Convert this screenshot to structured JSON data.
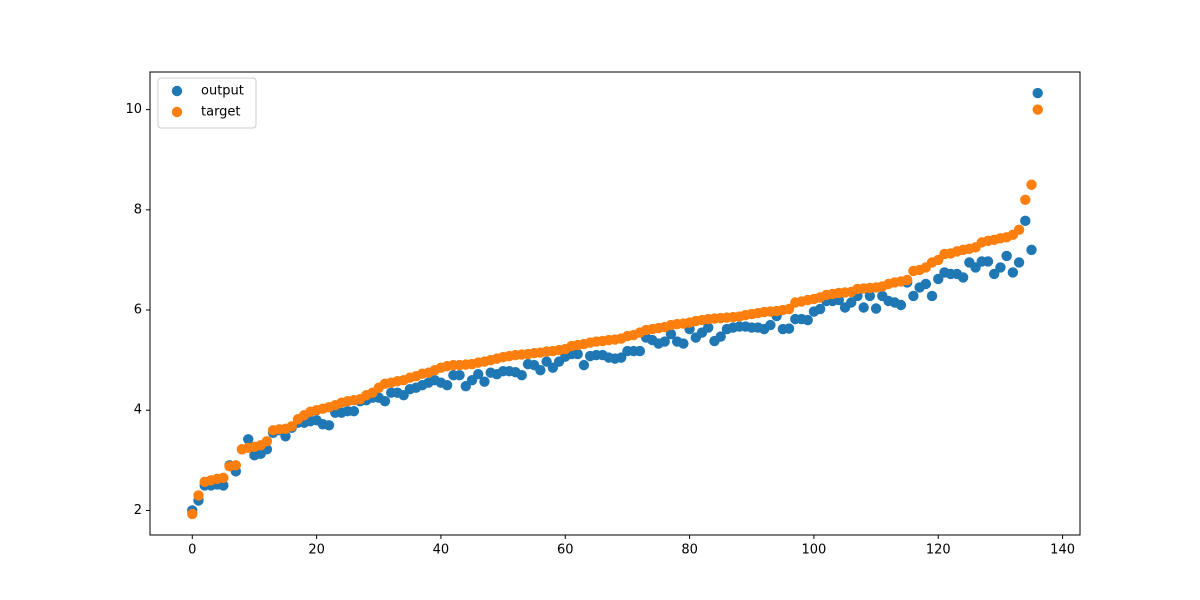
{
  "chart_data": {
    "type": "scatter",
    "x": [
      0,
      1,
      2,
      3,
      4,
      5,
      6,
      7,
      8,
      9,
      10,
      11,
      12,
      13,
      14,
      15,
      16,
      17,
      18,
      19,
      20,
      21,
      22,
      23,
      24,
      25,
      26,
      27,
      28,
      29,
      30,
      31,
      32,
      33,
      34,
      35,
      36,
      37,
      38,
      39,
      40,
      41,
      42,
      43,
      44,
      45,
      46,
      47,
      48,
      49,
      50,
      51,
      52,
      53,
      54,
      55,
      56,
      57,
      58,
      59,
      60,
      61,
      62,
      63,
      64,
      65,
      66,
      67,
      68,
      69,
      70,
      71,
      72,
      73,
      74,
      75,
      76,
      77,
      78,
      79,
      80,
      81,
      82,
      83,
      84,
      85,
      86,
      87,
      88,
      89,
      90,
      91,
      92,
      93,
      94,
      95,
      96,
      97,
      98,
      99,
      100,
      101,
      102,
      103,
      104,
      105,
      106,
      107,
      108,
      109,
      110,
      111,
      112,
      113,
      114,
      115,
      116,
      117,
      118,
      119,
      120,
      121,
      122,
      123,
      124,
      125,
      126,
      127,
      128,
      129,
      130,
      131,
      132,
      133,
      134,
      135,
      136
    ],
    "series": [
      {
        "name": "output",
        "color": "#1f77b4",
        "values": [
          2.0,
          2.2,
          2.5,
          2.5,
          2.52,
          2.5,
          2.9,
          2.78,
          3.22,
          3.42,
          3.1,
          3.13,
          3.22,
          3.55,
          3.6,
          3.48,
          3.65,
          3.75,
          3.75,
          3.78,
          3.8,
          3.72,
          3.7,
          3.95,
          3.95,
          3.98,
          3.98,
          4.18,
          4.2,
          4.25,
          4.25,
          4.18,
          4.35,
          4.35,
          4.3,
          4.42,
          4.45,
          4.5,
          4.55,
          4.6,
          4.55,
          4.5,
          4.7,
          4.7,
          4.48,
          4.6,
          4.72,
          4.57,
          4.75,
          4.72,
          4.78,
          4.78,
          4.76,
          4.7,
          4.92,
          4.9,
          4.8,
          4.97,
          4.85,
          4.97,
          5.07,
          5.12,
          5.12,
          4.9,
          5.08,
          5.1,
          5.1,
          5.05,
          5.03,
          5.05,
          5.18,
          5.18,
          5.18,
          5.45,
          5.4,
          5.33,
          5.37,
          5.52,
          5.37,
          5.33,
          5.62,
          5.45,
          5.55,
          5.65,
          5.38,
          5.47,
          5.62,
          5.65,
          5.67,
          5.67,
          5.65,
          5.65,
          5.62,
          5.7,
          5.88,
          5.62,
          5.63,
          5.82,
          5.82,
          5.8,
          5.97,
          6.02,
          6.18,
          6.18,
          6.2,
          6.05,
          6.15,
          6.28,
          6.05,
          6.28,
          6.03,
          6.28,
          6.18,
          6.15,
          6.1,
          6.55,
          6.28,
          6.45,
          6.52,
          6.28,
          6.62,
          6.75,
          6.72,
          6.72,
          6.65,
          6.95,
          6.85,
          6.97,
          6.97,
          6.72,
          6.85,
          7.08,
          6.75,
          6.95,
          7.78,
          7.2,
          10.33
        ]
      },
      {
        "name": "target",
        "color": "#ff7f0e",
        "values": [
          1.93,
          2.3,
          2.57,
          2.6,
          2.63,
          2.65,
          2.88,
          2.9,
          3.22,
          3.25,
          3.27,
          3.3,
          3.38,
          3.6,
          3.62,
          3.63,
          3.68,
          3.82,
          3.9,
          3.97,
          4.0,
          4.03,
          4.06,
          4.1,
          4.15,
          4.18,
          4.2,
          4.22,
          4.3,
          4.35,
          4.45,
          4.53,
          4.55,
          4.58,
          4.6,
          4.65,
          4.68,
          4.73,
          4.75,
          4.8,
          4.85,
          4.88,
          4.9,
          4.9,
          4.91,
          4.92,
          4.95,
          4.97,
          5.0,
          5.03,
          5.06,
          5.08,
          5.1,
          5.11,
          5.12,
          5.14,
          5.15,
          5.17,
          5.18,
          5.2,
          5.22,
          5.28,
          5.3,
          5.32,
          5.35,
          5.37,
          5.38,
          5.4,
          5.41,
          5.43,
          5.48,
          5.5,
          5.55,
          5.6,
          5.62,
          5.64,
          5.66,
          5.7,
          5.72,
          5.73,
          5.75,
          5.78,
          5.8,
          5.82,
          5.83,
          5.84,
          5.85,
          5.86,
          5.87,
          5.9,
          5.92,
          5.94,
          5.96,
          5.97,
          5.98,
          6.0,
          6.02,
          6.15,
          6.17,
          6.2,
          6.22,
          6.25,
          6.3,
          6.32,
          6.34,
          6.35,
          6.36,
          6.42,
          6.43,
          6.44,
          6.45,
          6.47,
          6.52,
          6.55,
          6.57,
          6.6,
          6.78,
          6.8,
          6.85,
          6.95,
          7.0,
          7.12,
          7.13,
          7.17,
          7.2,
          7.22,
          7.25,
          7.35,
          7.38,
          7.4,
          7.43,
          7.45,
          7.5,
          7.6,
          8.2,
          8.5,
          10.0
        ]
      }
    ],
    "xlim": [
      -6.8,
      142.8
    ],
    "xticks": [
      0,
      20,
      40,
      60,
      80,
      100,
      120,
      140
    ],
    "ylim": [
      1.51,
      10.75
    ],
    "yticks": [
      2,
      4,
      6,
      8,
      10
    ],
    "legend": "upper left"
  }
}
